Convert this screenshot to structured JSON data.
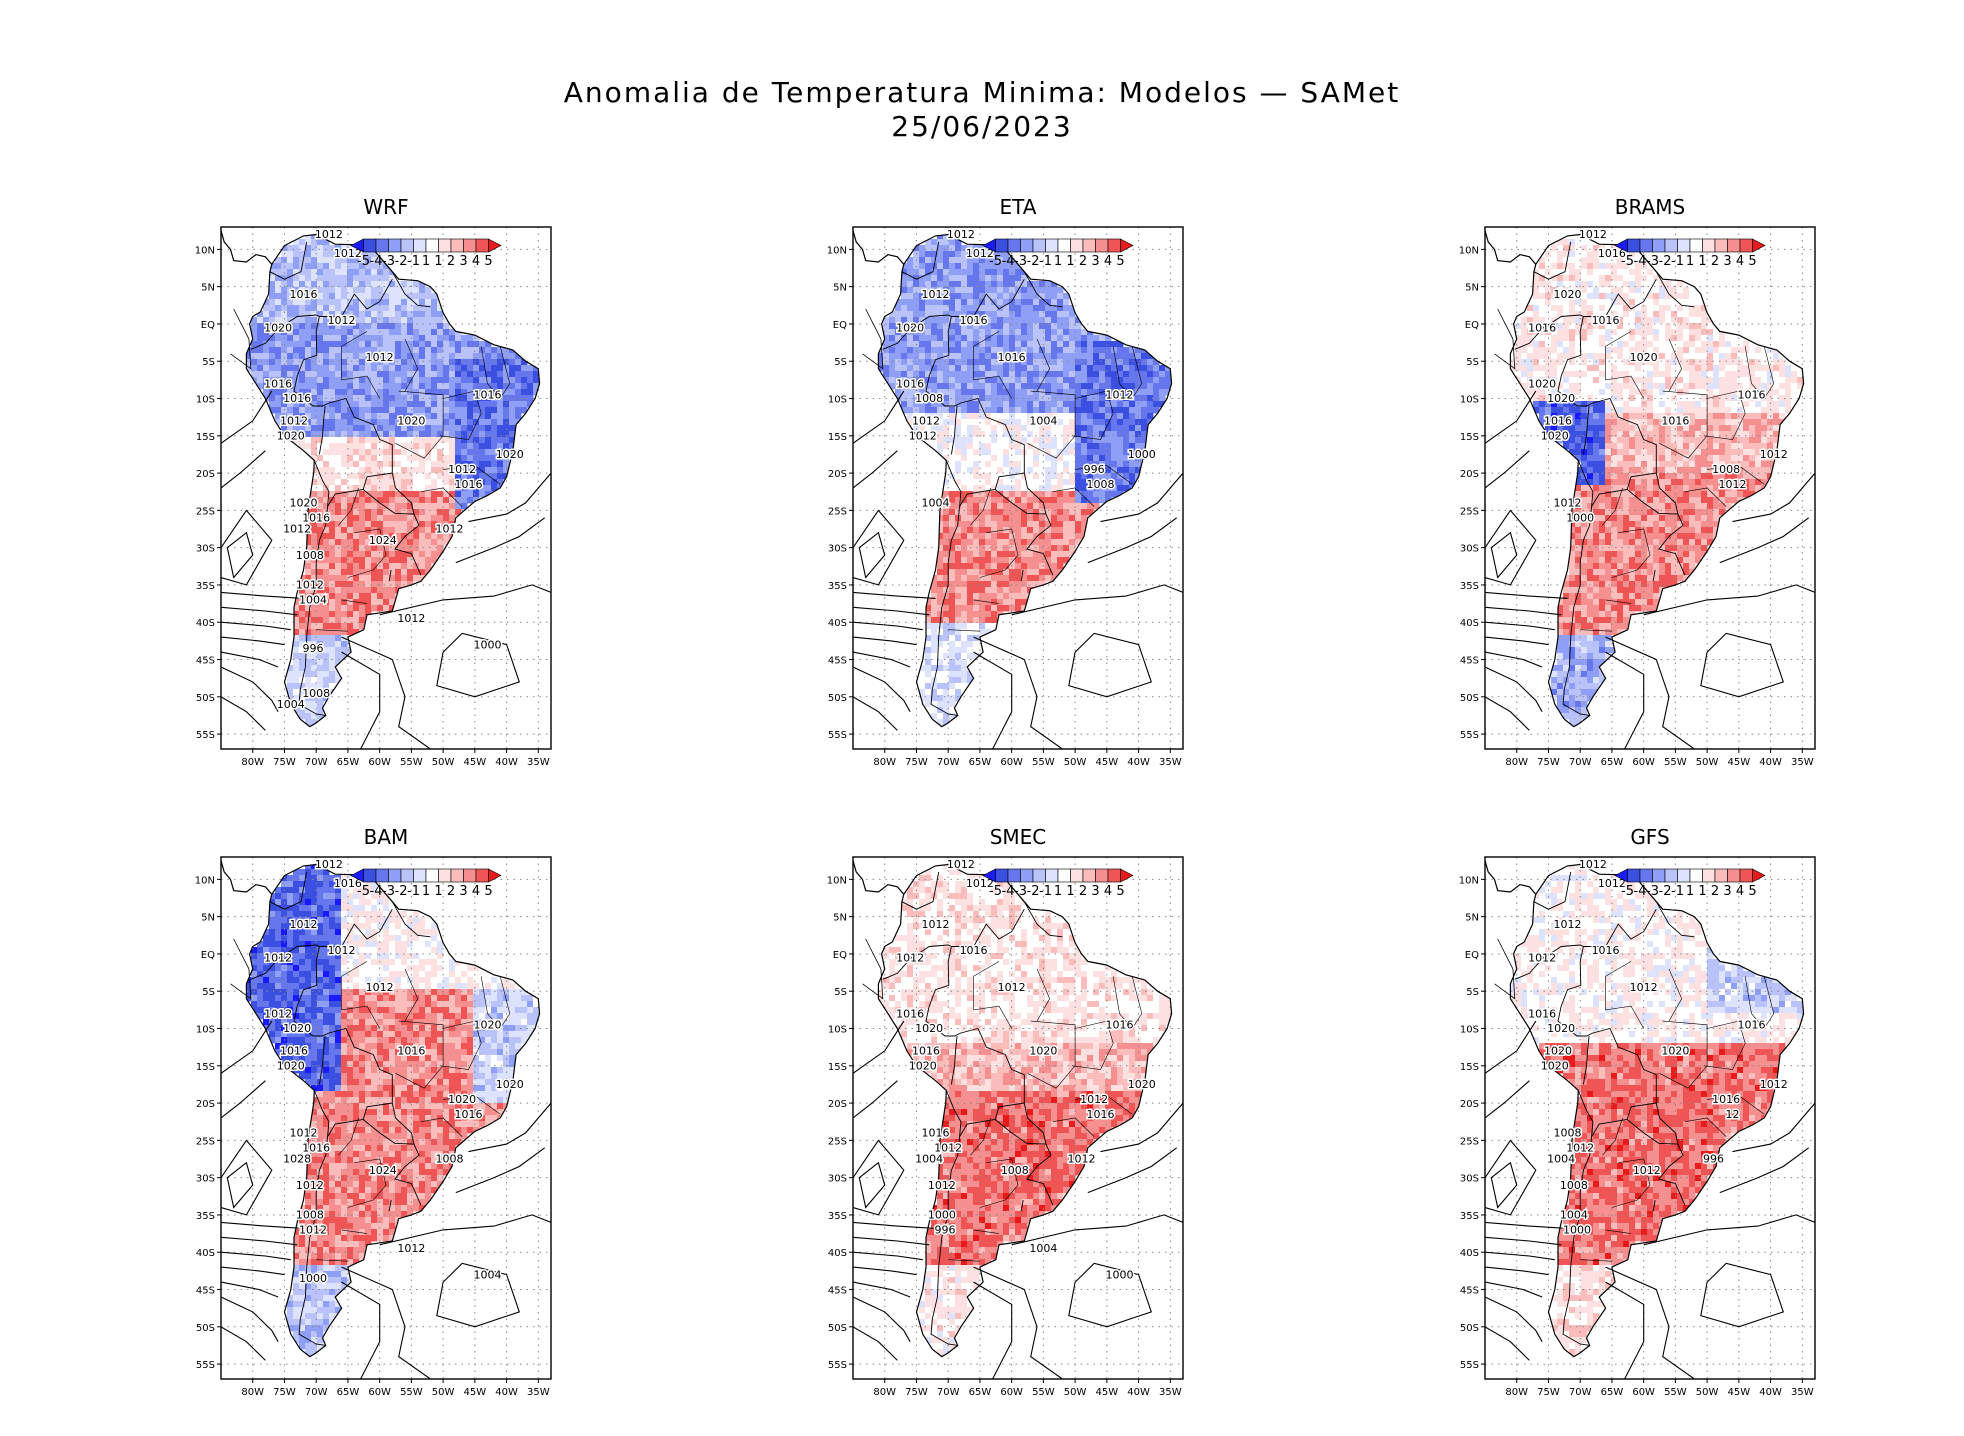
{
  "figure": {
    "title": "Anomalia de Temperatura Minima: Modelos — SAMet",
    "date": "25/06/2023"
  },
  "axes": {
    "lat_ticks": [
      "10N",
      "5N",
      "EQ",
      "5S",
      "10S",
      "15S",
      "20S",
      "25S",
      "30S",
      "35S",
      "40S",
      "45S",
      "50S",
      "55S"
    ],
    "lon_ticks": [
      "80W",
      "75W",
      "70W",
      "65W",
      "60W",
      "55W",
      "50W",
      "45W",
      "40W",
      "35W"
    ]
  },
  "colorbar": {
    "labels": [
      "-5",
      "-4",
      "-3",
      "-2",
      "-1",
      "1",
      "1",
      "2",
      "3",
      "4",
      "5"
    ],
    "colors": [
      "#1a1aff",
      "#3b4fe0",
      "#6677ee",
      "#8f9ff5",
      "#b9c3fa",
      "#dde3fd",
      "#ffffff",
      "#fde0e0",
      "#fbbcbc",
      "#f68f8f",
      "#f05555",
      "#e81a1a"
    ]
  },
  "colors": {
    "warm": "#e21b1b",
    "cold": "#2f3fd8",
    "neutral": "#f2f2f6",
    "contour": "#000000"
  },
  "panels": [
    {
      "name": "WRF",
      "scheme": "wrf",
      "isobars": [
        "1012",
        "1012",
        "1016",
        "1012",
        "1020",
        "1012",
        "1016",
        "1016",
        "1012",
        "1020",
        "1020",
        "1016",
        "1020",
        "1012",
        "1016",
        "1020",
        "1016",
        "1012",
        "1024",
        "1012",
        "1008",
        "1012",
        "1004",
        "1012",
        "1000",
        "996",
        "1008",
        "1004"
      ]
    },
    {
      "name": "ETA",
      "scheme": "eta",
      "isobars": [
        "1012",
        "1012",
        "1012",
        "1016",
        "1020",
        "1016",
        "1016",
        "1008",
        "1012",
        "1012",
        "1004",
        "1012",
        "1000",
        "996",
        "1008",
        "1004"
      ]
    },
    {
      "name": "BRAMS",
      "scheme": "brams",
      "isobars": [
        "1012",
        "1016",
        "1020",
        "1016",
        "1016",
        "1020",
        "1020",
        "1020",
        "1016",
        "1020",
        "1016",
        "1016",
        "1012",
        "1008",
        "1012",
        "1012",
        "1000"
      ]
    },
    {
      "name": "BAM",
      "scheme": "bam",
      "isobars": [
        "1012",
        "1016",
        "1012",
        "1012",
        "1012",
        "1012",
        "1012",
        "1020",
        "1016",
        "1020",
        "1016",
        "1020",
        "1020",
        "1020",
        "1016",
        "1012",
        "1016",
        "1028",
        "1024",
        "1008",
        "1012",
        "1008",
        "1012",
        "1012",
        "1004",
        "1000"
      ]
    },
    {
      "name": "SMEC",
      "scheme": "smec",
      "isobars": [
        "1012",
        "1012",
        "1012",
        "1016",
        "1012",
        "1012",
        "1016",
        "1020",
        "1016",
        "1020",
        "1020",
        "1016",
        "1020",
        "1012",
        "1016",
        "1016",
        "1012",
        "1004",
        "1008",
        "1012",
        "1012",
        "1000",
        "996",
        "1004",
        "1000"
      ]
    },
    {
      "name": "GFS",
      "scheme": "gfs",
      "isobars": [
        "1012",
        "1012",
        "1012",
        "1016",
        "1012",
        "1012",
        "1016",
        "1020",
        "1020",
        "1020",
        "1020",
        "1016",
        "1012",
        "1016",
        "12",
        "1008",
        "1012",
        "1004",
        "1012",
        "996",
        "1008",
        "1004",
        "1000"
      ]
    }
  ]
}
